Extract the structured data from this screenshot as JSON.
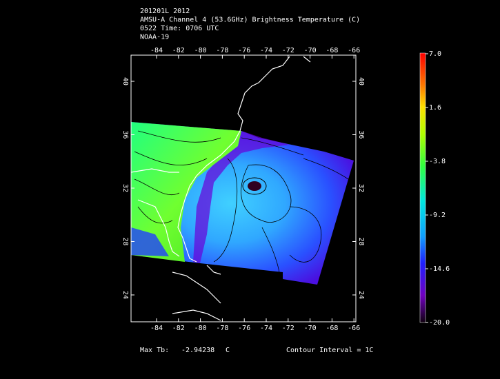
{
  "header": {
    "lines": [
      "201201L 2012",
      "AMSU-A Channel 4 (53.6GHz) Brightness Temperature (C)",
      "0522 Time: 0706 UTC",
      "NOAA-19"
    ]
  },
  "map": {
    "x_ticks": [
      "-84",
      "-82",
      "-80",
      "-78",
      "-76",
      "-74",
      "-72",
      "-70",
      "-68",
      "-66"
    ],
    "y_ticks": [
      "40",
      "36",
      "32",
      "28",
      "24"
    ]
  },
  "colorbar": {
    "labels": [
      "7.0",
      "1.6",
      "-3.8",
      "-9.2",
      "-14.6",
      "-20.0"
    ]
  },
  "footer": {
    "max_label": "Max Tb:",
    "max_value": "-2.94238",
    "max_unit": "C",
    "contour": "Contour Interval = 1C"
  }
}
